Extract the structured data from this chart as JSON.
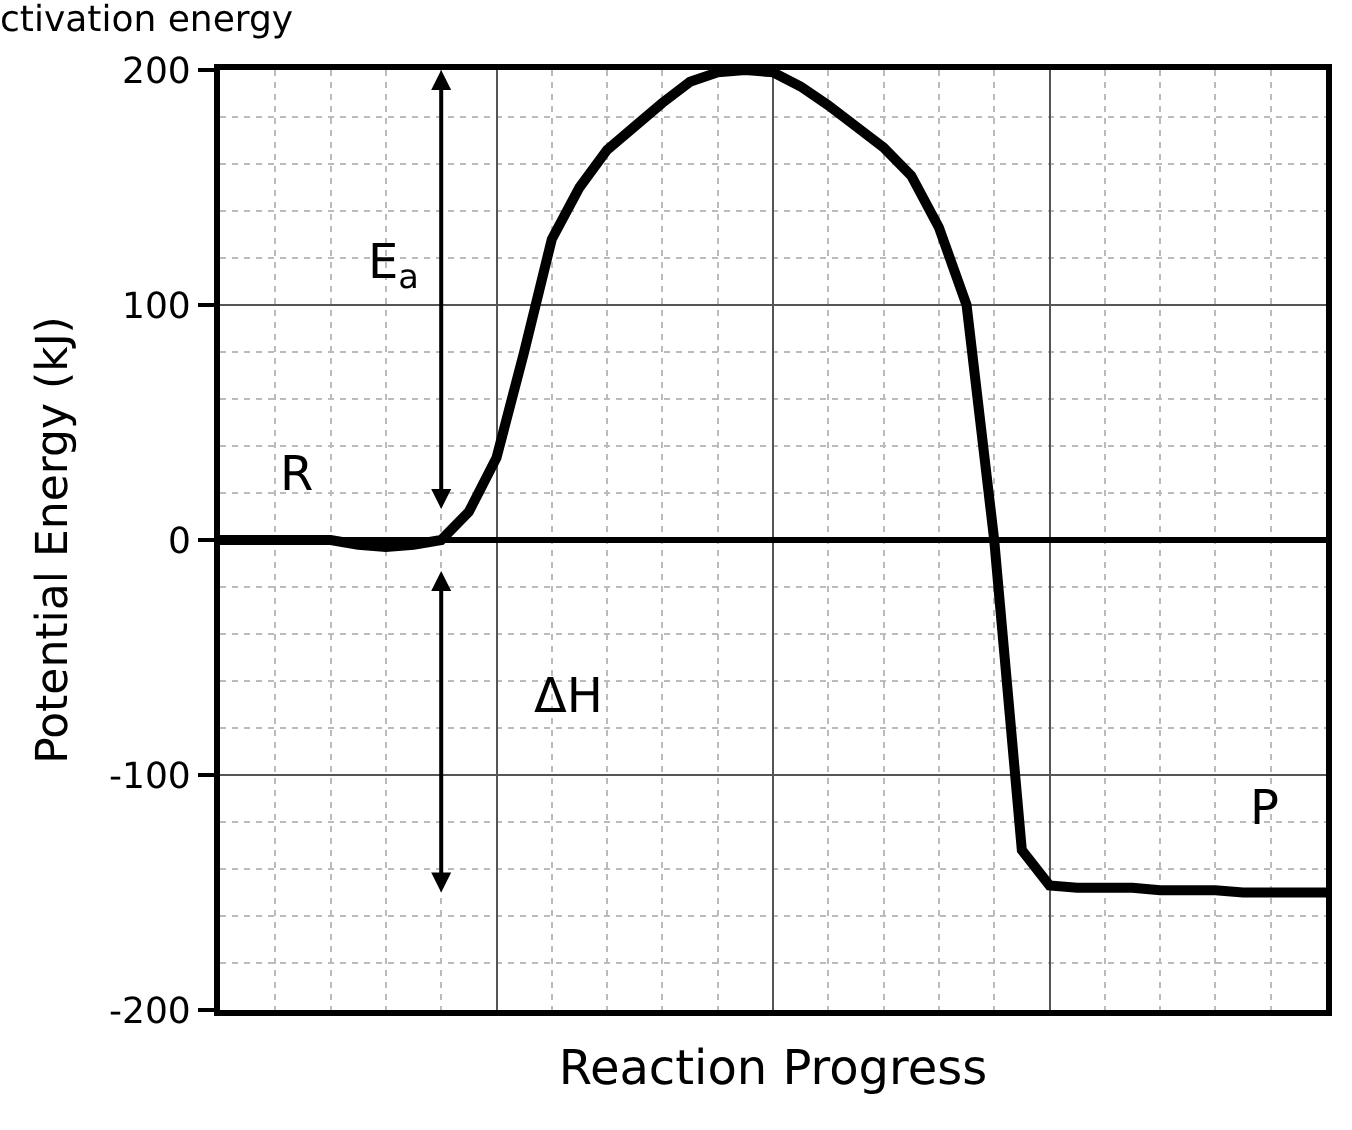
{
  "chart_data": {
    "type": "line",
    "title": "ctivation energy",
    "xlabel": "Reaction Progress",
    "ylabel": "Potential Energy (kJ)",
    "categories": [
      null,
      null,
      null,
      null,
      null,
      null,
      null,
      null,
      null,
      null,
      null,
      null,
      null,
      null,
      null,
      null,
      null,
      null,
      null,
      null,
      null,
      null,
      null,
      null,
      null,
      null,
      null,
      null,
      null,
      null,
      null,
      null,
      null,
      null,
      null,
      null,
      null,
      null,
      null,
      null,
      null
    ],
    "series": [
      {
        "color": "#000000",
        "values": [
          0,
          0,
          0,
          0,
          0,
          -2,
          -3,
          -2,
          0,
          12,
          35,
          80,
          128,
          150,
          166,
          176,
          186,
          195,
          199,
          200,
          199,
          193,
          185,
          176,
          167,
          155,
          133,
          100,
          0,
          -132,
          -147,
          -148,
          -148,
          -148,
          -149,
          -149,
          -149,
          -150,
          -150,
          -150,
          -150
        ]
      }
    ],
    "ylim": [
      -200,
      200
    ],
    "yticks": [
      -200,
      -100,
      0,
      100,
      200
    ],
    "grid": true,
    "marker": "none",
    "line_style": "solid",
    "annotations": [
      "R",
      "E$_{a}$",
      "ΔH",
      "P"
    ]
  }
}
